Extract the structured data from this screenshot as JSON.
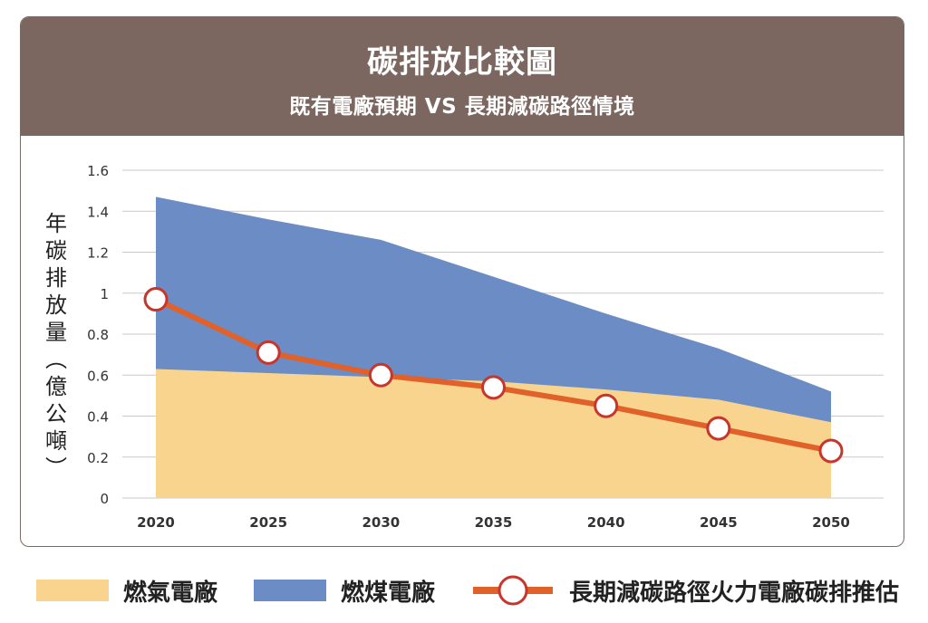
{
  "header": {
    "title": "碳排放比較圖",
    "subtitle": "既有電廠預期 VS 長期減碳路徑情境"
  },
  "chart_data": {
    "type": "area",
    "x": [
      2020,
      2025,
      2030,
      2035,
      2040,
      2045,
      2050
    ],
    "ylabel": "年碳排放量（億公噸）",
    "ylabel_chars": [
      "年",
      "碳",
      "排",
      "放",
      "量",
      "︵",
      "億",
      "公",
      "噸",
      "︶"
    ],
    "ylim": [
      0,
      1.6
    ],
    "yticks": [
      0,
      0.2,
      0.4,
      0.6,
      0.8,
      1,
      1.2,
      1.4,
      1.6
    ],
    "ytick_labels": [
      "0",
      "0.2",
      "0.4",
      "0.6",
      "0.8",
      "1",
      "1.2",
      "1.4",
      "1.6"
    ],
    "grid": true,
    "legend_position": "bottom",
    "series": [
      {
        "name": "燃氣電廠",
        "kind": "area",
        "stacked_base": true,
        "color": "#f8d48e",
        "values": [
          0.63,
          0.61,
          0.59,
          0.57,
          0.53,
          0.48,
          0.37
        ]
      },
      {
        "name": "燃煤電廠",
        "kind": "area",
        "stacked_top_total": true,
        "color": "#6b8cc4",
        "values": [
          1.47,
          1.36,
          1.26,
          1.08,
          0.9,
          0.73,
          0.52
        ]
      },
      {
        "name": "長期減碳路徑火力電廠碳排推估",
        "kind": "line",
        "color": "#e0612a",
        "values": [
          0.97,
          0.71,
          0.6,
          0.54,
          0.45,
          0.34,
          0.23
        ]
      }
    ]
  },
  "legend": {
    "gas": "燃氣電廠",
    "coal": "燃煤電廠",
    "path": "長期減碳路徑火力電廠碳排推估"
  },
  "colors": {
    "header_bg": "#7b6660",
    "gas": "#f8d48e",
    "coal": "#6b8cc4",
    "line": "#e0612a",
    "marker_stroke": "#c8352a"
  }
}
